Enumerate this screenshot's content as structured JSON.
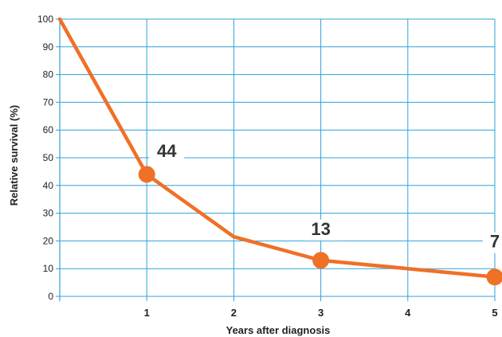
{
  "chart_data": {
    "type": "line",
    "xlabel": "Years after diagnosis",
    "ylabel": "Relative survival (%)",
    "xlim": [
      0,
      5
    ],
    "ylim": [
      0,
      100
    ],
    "y_ticks": [
      0,
      10,
      20,
      30,
      40,
      50,
      60,
      70,
      80,
      90,
      100
    ],
    "x_ticks": [
      1,
      2,
      3,
      4,
      5
    ],
    "grid": true,
    "series": [
      {
        "x": [
          0,
          1,
          2,
          3,
          4,
          5
        ],
        "values": [
          100,
          44,
          21.5,
          13,
          10,
          7
        ],
        "markers_at": [
          1,
          3,
          5
        ]
      }
    ],
    "annotations": [
      {
        "x": 1,
        "y": 44,
        "text": "44"
      },
      {
        "x": 3,
        "y": 13,
        "text": "13"
      },
      {
        "x": 5,
        "y": 7,
        "text": "7"
      }
    ],
    "colors": {
      "line": "#ef7027",
      "grid": "#2da3d9",
      "axis": "#2da3d9"
    }
  }
}
